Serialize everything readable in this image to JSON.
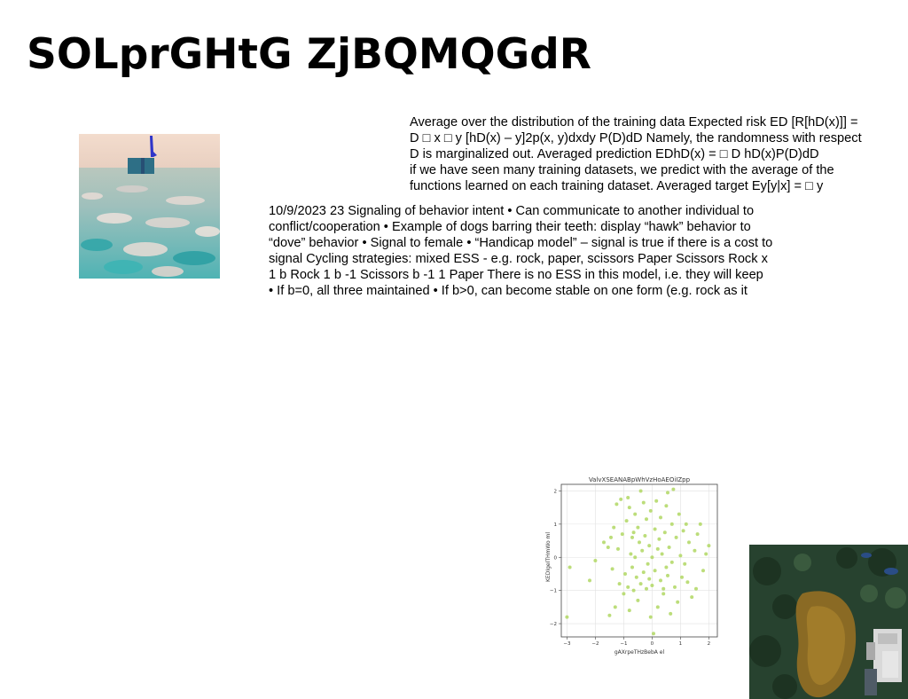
{
  "page": {
    "title": "SOLprGHtG ZjBQMQGdR"
  },
  "paragraph_1": {
    "lines": [
      "Average over the distribution of the training data Expected risk ED [R[hD(x)]] =",
      "D □ x □ y [hD(x) – y]2p(x, y)dxdy P(D)dD Namely, the randomness with respect",
      "D is marginalized out. Averaged prediction EDhD(x) = □ D hD(x)P(D)dD",
      "if we have seen many training datasets, we predict with the average of the",
      "functions learned on each training dataset. Averaged target Ey[y|x] = □ y"
    ]
  },
  "paragraph_2": {
    "lines": [
      "10/9/2023 23 Signaling of behavior intent • Can communicate to another individual to",
      "conflict/cooperation • Example of dogs barring their teeth: display “hawk” behavior to",
      "“dove” behavior • Signal to female • “Handicap model” – signal is true if there is a cost to",
      "signal Cycling strategies: mixed ESS - e.g. rock, paper, scissors Paper Scissors Rock x",
      "1 b Rock 1 b -1 Scissors b -1 1 Paper There is no ESS in this model, i.e. they will keep",
      "• If b=0, all three maintained • If b>0, can become stable on one form (e.g. rock as it"
    ]
  },
  "photo_1": {
    "subject": "field-with-post"
  },
  "photo_2": {
    "subject": "aerial-pond"
  },
  "chart_data": {
    "type": "scatter",
    "title": "ValvXSEANABpWhVzHoAEOiIZpp",
    "xlabel": "gAXrpeTHzBebA el",
    "ylabel": "KEDIgeITHmWo ml",
    "xlim": [
      -3.2,
      2.3
    ],
    "ylim": [
      -2.4,
      2.2
    ],
    "xticks": [
      -3,
      -2,
      -1,
      0,
      1,
      2
    ],
    "yticks": [
      -2,
      -1,
      0,
      1,
      2
    ],
    "xtick_labels": [
      "−3",
      "−2",
      "−1",
      "0",
      "1",
      "2"
    ],
    "ytick_labels": [
      "−2",
      "−1",
      "0",
      "1",
      "2"
    ],
    "grid": true,
    "point_color": "#b5d96b",
    "points": [
      [
        -3.0,
        -1.8
      ],
      [
        -2.2,
        -0.7
      ],
      [
        -2.0,
        -0.1
      ],
      [
        -1.7,
        0.45
      ],
      [
        -1.55,
        0.3
      ],
      [
        -1.45,
        0.6
      ],
      [
        -1.5,
        -1.75
      ],
      [
        -1.4,
        -0.35
      ],
      [
        -1.35,
        0.9
      ],
      [
        -1.25,
        1.6
      ],
      [
        -1.2,
        0.25
      ],
      [
        -1.15,
        -0.8
      ],
      [
        -1.1,
        1.75
      ],
      [
        -1.05,
        0.7
      ],
      [
        -1.0,
        -1.1
      ],
      [
        -0.95,
        -0.5
      ],
      [
        -0.9,
        1.1
      ],
      [
        -0.85,
        -0.9
      ],
      [
        -0.85,
        1.8
      ],
      [
        -0.8,
        1.5
      ],
      [
        -0.8,
        -1.6
      ],
      [
        -0.75,
        0.1
      ],
      [
        -0.7,
        -0.3
      ],
      [
        -0.7,
        0.6
      ],
      [
        -0.65,
        -1.0
      ],
      [
        -0.6,
        1.3
      ],
      [
        -0.6,
        0.0
      ],
      [
        -0.55,
        -0.6
      ],
      [
        -0.5,
        0.9
      ],
      [
        -0.5,
        -1.3
      ],
      [
        -0.45,
        0.45
      ],
      [
        -0.4,
        2.0
      ],
      [
        -0.4,
        -0.8
      ],
      [
        -0.35,
        0.2
      ],
      [
        -0.3,
        -0.45
      ],
      [
        -0.3,
        1.65
      ],
      [
        -0.25,
        0.65
      ],
      [
        -0.2,
        -0.95
      ],
      [
        -0.2,
        1.15
      ],
      [
        -0.15,
        -0.2
      ],
      [
        -0.1,
        0.35
      ],
      [
        -0.1,
        -0.65
      ],
      [
        -0.05,
        1.4
      ],
      [
        0.0,
        -0.85
      ],
      [
        0.0,
        0.0
      ],
      [
        0.05,
        -2.3
      ],
      [
        0.1,
        0.85
      ],
      [
        0.1,
        -0.4
      ],
      [
        0.15,
        1.7
      ],
      [
        0.2,
        -1.5
      ],
      [
        0.25,
        0.55
      ],
      [
        0.3,
        -0.7
      ],
      [
        0.3,
        1.2
      ],
      [
        0.35,
        0.1
      ],
      [
        0.4,
        -1.1
      ],
      [
        0.45,
        0.75
      ],
      [
        0.5,
        -0.3
      ],
      [
        0.5,
        1.55
      ],
      [
        0.55,
        -0.55
      ],
      [
        0.6,
        0.3
      ],
      [
        0.65,
        -1.7
      ],
      [
        0.7,
        1.0
      ],
      [
        0.7,
        -0.15
      ],
      [
        0.75,
        2.05
      ],
      [
        0.8,
        -0.9
      ],
      [
        0.85,
        0.6
      ],
      [
        0.9,
        -1.35
      ],
      [
        0.95,
        1.3
      ],
      [
        1.0,
        0.05
      ],
      [
        1.05,
        -0.6
      ],
      [
        1.1,
        0.8
      ],
      [
        1.15,
        -0.2
      ],
      [
        1.2,
        1.0
      ],
      [
        1.25,
        -0.75
      ],
      [
        1.3,
        0.45
      ],
      [
        1.4,
        -1.2
      ],
      [
        1.5,
        0.2
      ],
      [
        1.55,
        -0.95
      ],
      [
        1.6,
        0.7
      ],
      [
        1.7,
        1.0
      ],
      [
        1.8,
        -0.4
      ],
      [
        1.9,
        0.1
      ],
      [
        2.0,
        0.35
      ],
      [
        -2.9,
        -0.3
      ],
      [
        0.2,
        0.25
      ],
      [
        -0.65,
        0.75
      ],
      [
        0.55,
        1.95
      ],
      [
        -1.3,
        -1.5
      ],
      [
        0.4,
        -0.95
      ],
      [
        -0.05,
        -1.8
      ]
    ]
  }
}
